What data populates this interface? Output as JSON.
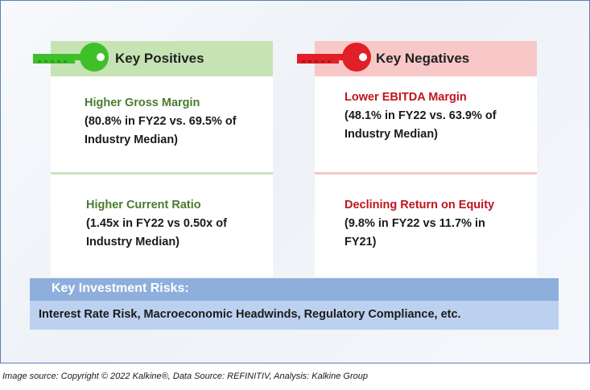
{
  "positives": {
    "heading": "Key Positives",
    "items": [
      {
        "title": "Higher Gross Margin",
        "detail_line1": "(80.8% in FY22 vs. 69.5% of",
        "detail_line2": "Industry Median)"
      },
      {
        "title": "Higher Current Ratio",
        "detail_line1": "(1.45x in FY22 vs 0.50x of",
        "detail_line2": "Industry Median)"
      }
    ]
  },
  "negatives": {
    "heading": "Key Negatives",
    "items": [
      {
        "title": "Lower EBITDA Margin",
        "detail_line1": "(48.1% in FY22 vs. 63.9% of",
        "detail_line2": "Industry Median)"
      },
      {
        "title": "Declining Return on Equity",
        "detail_line1": "(9.8% in FY22 vs 11.7% in",
        "detail_line2": "FY21)"
      }
    ]
  },
  "risks": {
    "heading": "Key Investment Risks:",
    "text": "Interest Rate Risk, Macroeconomic Headwinds, Regulatory Compliance, etc."
  },
  "source": "Image source: Copyright © 2022 Kalkine®, Data Source: REFINITIV, Analysis: Kalkine Group",
  "colors": {
    "positive_accent": "#4a7c2f",
    "positive_key": "#3fbf2a",
    "negative_accent": "#c0141d",
    "negative_key": "#e01f26",
    "risk_header": "#8eaedc",
    "risk_body": "#bcd1ef"
  },
  "icons": [
    "green-key-icon",
    "red-key-icon"
  ]
}
